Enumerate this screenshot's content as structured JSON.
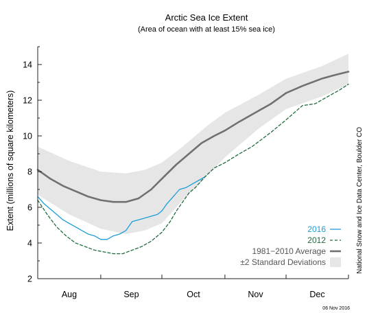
{
  "chart_data": {
    "type": "line",
    "title": "Arctic Sea Ice Extent",
    "subtitle": "(Area of ocean with at least 15% sea ice)",
    "ylabel": "Extent (millions of square kilometers)",
    "xlabel": "",
    "ylim": [
      2,
      15
    ],
    "xlim": [
      0,
      4.93
    ],
    "yticks": [
      2,
      4,
      6,
      8,
      10,
      12,
      14
    ],
    "months": [
      {
        "label": "Aug",
        "start": 0,
        "end": 1
      },
      {
        "label": "Sep",
        "start": 1,
        "end": 1.97
      },
      {
        "label": "Oct",
        "start": 1.97,
        "end": 2.97
      },
      {
        "label": "Nov",
        "start": 2.97,
        "end": 3.94
      },
      {
        "label": "Dec",
        "start": 3.94,
        "end": 4.93
      }
    ],
    "grid": false,
    "legend_position": "bottom-right",
    "series": [
      {
        "name": "±2 Standard Deviations",
        "kind": "band",
        "color": "#e6e6e6",
        "x": [
          0,
          0.5,
          1.0,
          1.4,
          1.7,
          1.97,
          2.3,
          2.7,
          2.97,
          3.5,
          3.94,
          4.5,
          4.93
        ],
        "upper": [
          9.4,
          8.6,
          8.0,
          7.9,
          8.1,
          8.5,
          9.4,
          10.6,
          11.3,
          12.3,
          13.2,
          13.9,
          14.6
        ],
        "lower": [
          6.7,
          5.6,
          4.8,
          4.5,
          4.7,
          5.1,
          6.4,
          7.8,
          8.8,
          10.4,
          11.5,
          12.2,
          12.9
        ]
      },
      {
        "name": "1981–2010 Average",
        "kind": "line",
        "color": "#707070",
        "dash": "solid",
        "x": [
          0,
          0.2,
          0.4,
          0.6,
          0.8,
          1.0,
          1.2,
          1.4,
          1.6,
          1.8,
          1.97,
          2.2,
          2.4,
          2.6,
          2.8,
          2.97,
          3.2,
          3.5,
          3.7,
          3.94,
          4.2,
          4.5,
          4.7,
          4.93
        ],
        "values": [
          8.1,
          7.6,
          7.2,
          6.9,
          6.6,
          6.4,
          6.3,
          6.3,
          6.5,
          7.0,
          7.6,
          8.4,
          9.0,
          9.6,
          10.0,
          10.3,
          10.8,
          11.4,
          11.8,
          12.4,
          12.8,
          13.2,
          13.4,
          13.6
        ]
      },
      {
        "name": "2016",
        "kind": "line",
        "color": "#1a9ed9",
        "dash": "solid",
        "x": [
          0,
          0.1,
          0.2,
          0.3,
          0.4,
          0.5,
          0.6,
          0.7,
          0.8,
          0.9,
          1.0,
          1.1,
          1.2,
          1.3,
          1.4,
          1.5,
          1.6,
          1.7,
          1.8,
          1.9,
          1.97,
          2.05,
          2.15,
          2.25,
          2.35,
          2.45,
          2.55,
          2.65
        ],
        "values": [
          6.6,
          6.2,
          5.9,
          5.6,
          5.3,
          5.1,
          4.9,
          4.7,
          4.5,
          4.4,
          4.2,
          4.2,
          4.4,
          4.5,
          4.7,
          5.2,
          5.3,
          5.4,
          5.5,
          5.6,
          5.8,
          6.2,
          6.6,
          7.0,
          7.1,
          7.3,
          7.5,
          7.7
        ]
      },
      {
        "name": "2012",
        "kind": "line",
        "color": "#1e6b3a",
        "dash": "dashed",
        "x": [
          0,
          0.15,
          0.3,
          0.45,
          0.6,
          0.75,
          0.9,
          1.05,
          1.2,
          1.35,
          1.5,
          1.65,
          1.8,
          1.97,
          2.1,
          2.2,
          2.3,
          2.4,
          2.5,
          2.65,
          2.8,
          2.97,
          3.2,
          3.4,
          3.7,
          3.94,
          4.2,
          4.4,
          4.6,
          4.8,
          4.93
        ],
        "values": [
          6.4,
          5.6,
          4.9,
          4.4,
          4.0,
          3.8,
          3.6,
          3.5,
          3.4,
          3.4,
          3.6,
          3.8,
          4.1,
          4.6,
          5.2,
          5.8,
          6.3,
          6.8,
          7.1,
          7.7,
          8.2,
          8.5,
          9.0,
          9.4,
          10.2,
          10.9,
          11.7,
          11.8,
          12.2,
          12.6,
          12.9
        ]
      }
    ],
    "legend": [
      {
        "label": "2016",
        "color": "#1a9ed9",
        "style": "solid"
      },
      {
        "label": "2012",
        "color": "#1e6b3a",
        "style": "dashed"
      },
      {
        "label": "1981−2010 Average",
        "color": "#707070",
        "style": "thick"
      },
      {
        "label": "±2 Standard Deviations",
        "color": "#e6e6e6",
        "style": "box"
      }
    ],
    "credit": "National Snow and Ice Data Center, Boulder CO",
    "date_stamp": "06 Nov 2016"
  }
}
